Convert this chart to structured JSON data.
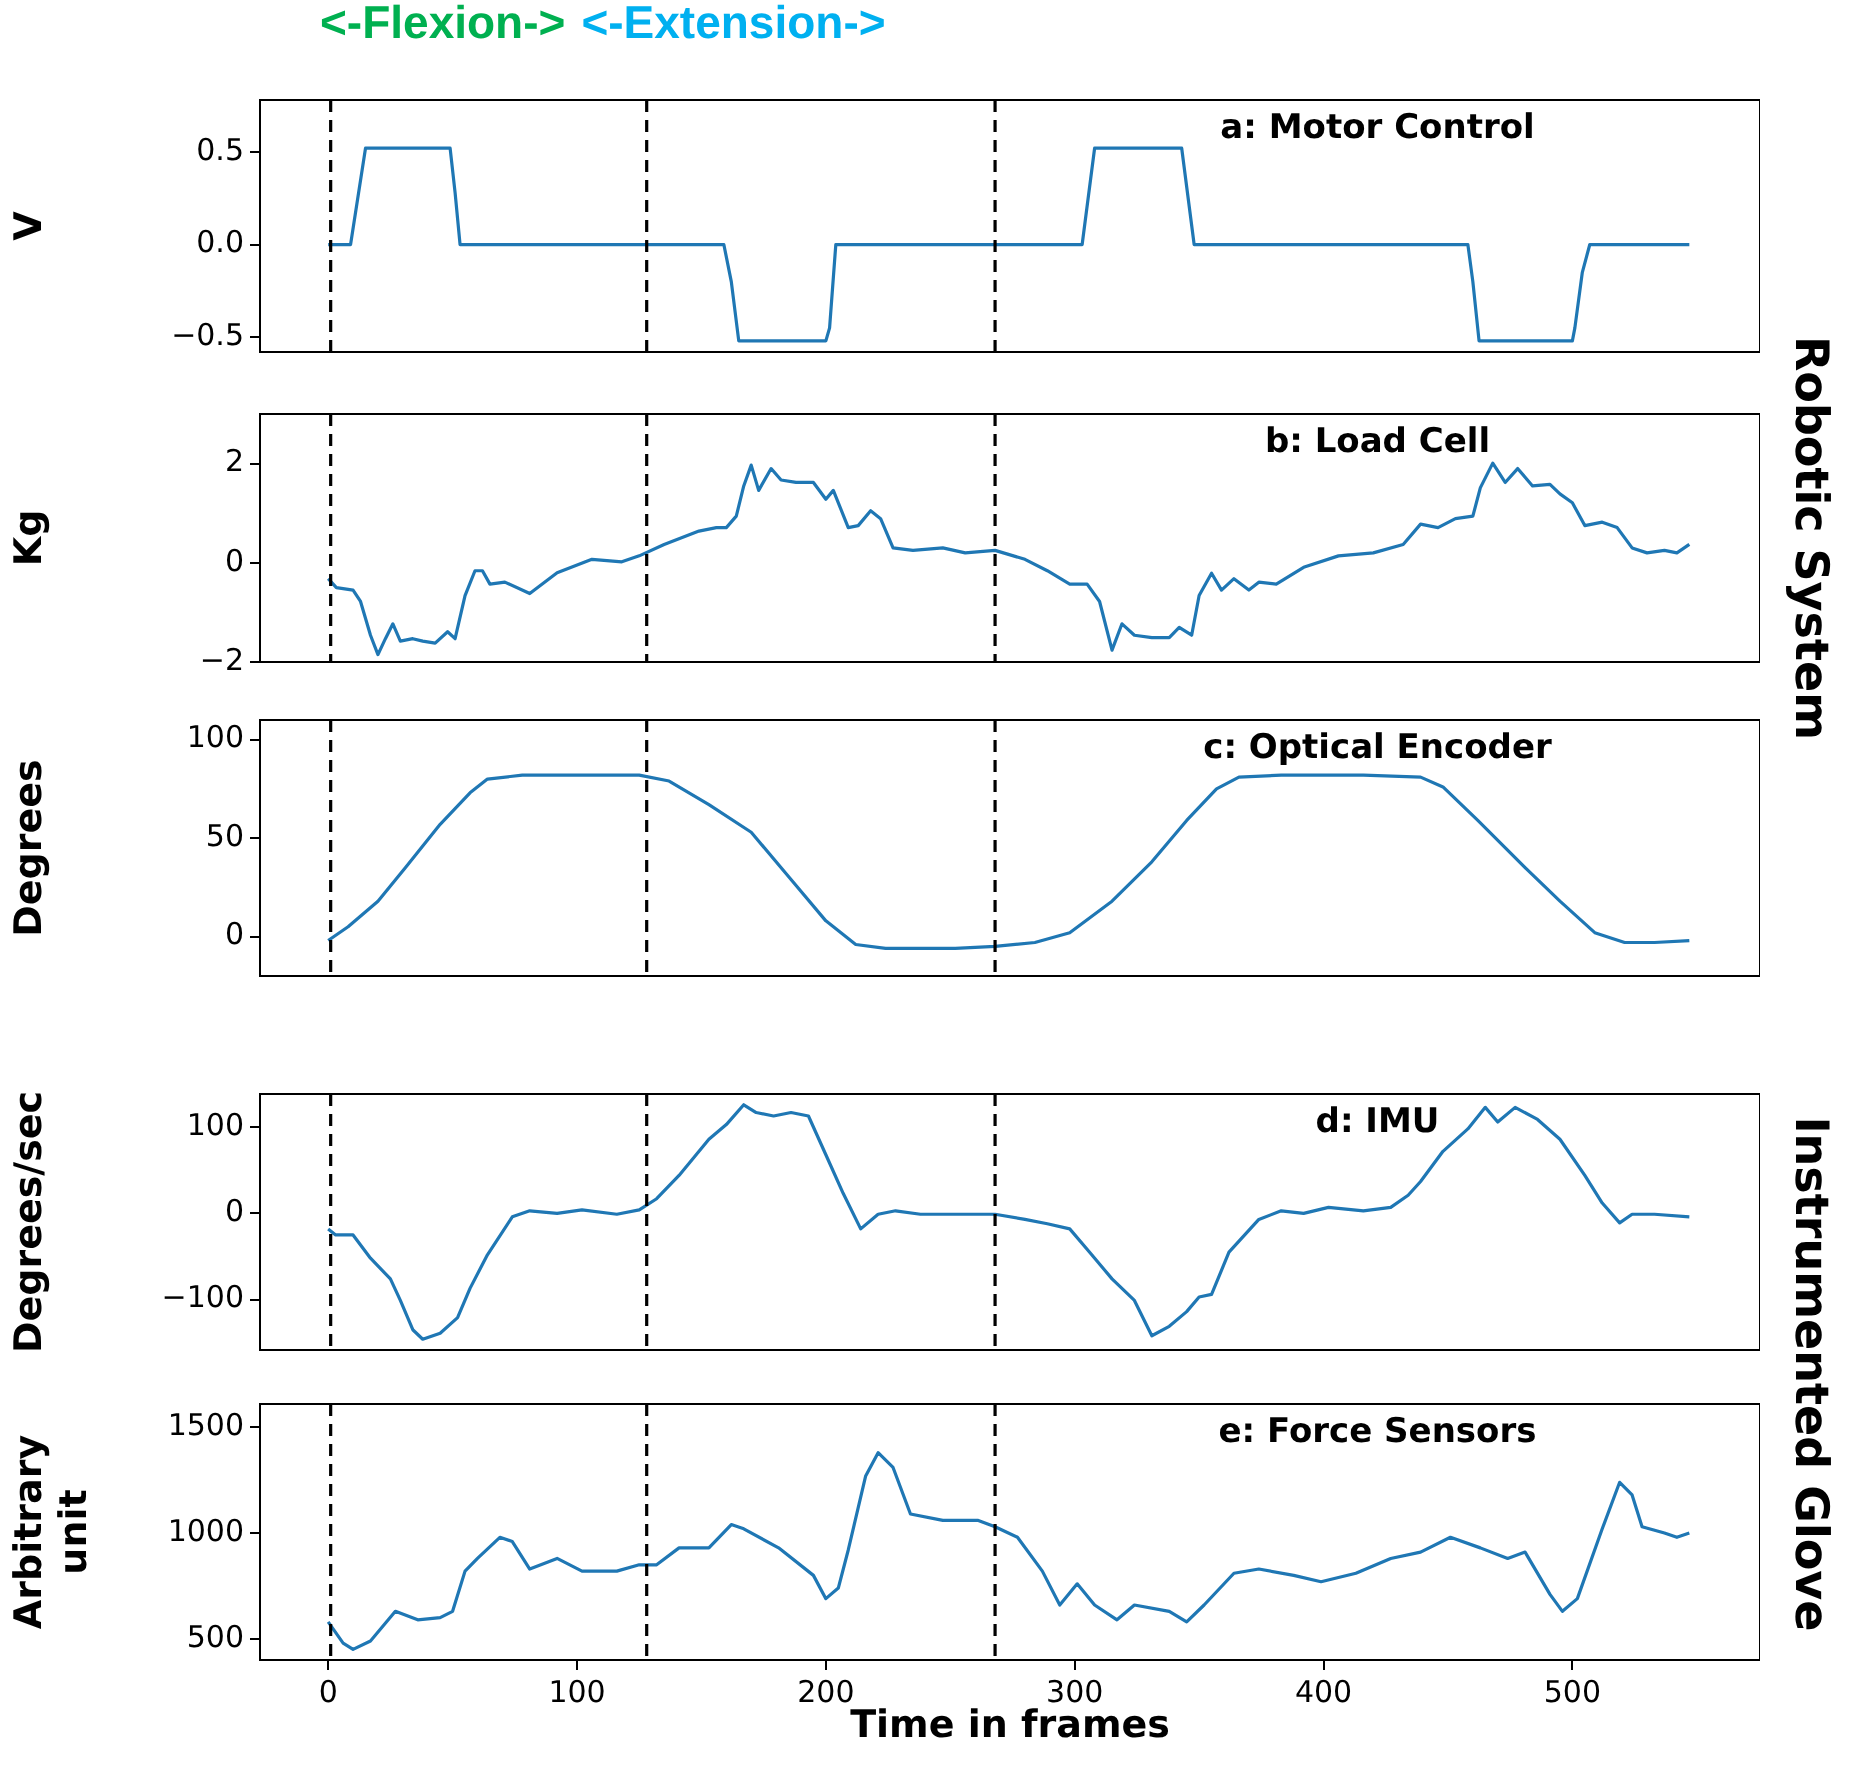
{
  "chart_data": [
    {
      "type": "line",
      "title": "a: Motor Control",
      "ylabel": "V",
      "annotations": [
        "<-Flexion->",
        "<-Extension->"
      ],
      "tick_labels": "y",
      "grid": false,
      "legend": false,
      "xlim": [
        -27.4,
        575.4
      ],
      "ylim": [
        -0.58,
        0.78
      ],
      "yticks": [
        {
          "value": -0.5,
          "label": "−0.5"
        },
        {
          "value": 0,
          "label": "0.0"
        },
        0.5
      ],
      "ref_lines": [
        {
          "axis": "x",
          "value": 1,
          "color": "#000000",
          "line_style": "dashed"
        },
        {
          "axis": "x",
          "value": 128,
          "color": "#000000",
          "line_style": "dashed"
        },
        {
          "axis": "x",
          "value": 268,
          "color": "#000000",
          "line_style": "dashed"
        }
      ],
      "x": [
        0,
        9,
        15,
        49,
        51,
        53,
        159,
        162,
        165,
        200,
        201.5,
        204,
        303,
        308,
        343,
        348,
        458,
        460,
        462.5,
        500,
        501,
        504,
        507,
        547
      ],
      "series": [
        {
          "color": "#1f77b4",
          "values": [
            0,
            0,
            0.52,
            0.52,
            0.28,
            0,
            0,
            -0.2,
            -0.52,
            -0.52,
            -0.45,
            0,
            0,
            0.52,
            0.52,
            0,
            0,
            -0.2,
            -0.52,
            -0.52,
            -0.45,
            -0.15,
            0,
            0
          ]
        }
      ]
    },
    {
      "type": "line",
      "title": "b: Load Cell",
      "ylabel": "Kg",
      "annotations": [
        "Robotic System"
      ],
      "tick_labels": "y",
      "grid": false,
      "legend": false,
      "xlim": [
        -27.4,
        575.4
      ],
      "ylim": [
        -2,
        3
      ],
      "yticks": [
        {
          "value": -2,
          "label": "−2"
        },
        0,
        2
      ],
      "ref_lines": [
        {
          "axis": "x",
          "value": 1,
          "color": "#000000",
          "line_style": "dashed"
        },
        {
          "axis": "x",
          "value": 128,
          "color": "#000000",
          "line_style": "dashed"
        },
        {
          "axis": "x",
          "value": 268,
          "color": "#000000",
          "line_style": "dashed"
        }
      ],
      "x": [
        0,
        3.3,
        10,
        13,
        17,
        20,
        23,
        26,
        29,
        34,
        38,
        43,
        48,
        51,
        55,
        59,
        62,
        65,
        71,
        81,
        92,
        106,
        118,
        125,
        135,
        149,
        156,
        160,
        164,
        167,
        170,
        173,
        178,
        182,
        188,
        195,
        200,
        203,
        209,
        213,
        218,
        222,
        227,
        235,
        247,
        256,
        268,
        280,
        289,
        298,
        305,
        310,
        315,
        319,
        324,
        331,
        338,
        342,
        347,
        350,
        355,
        359,
        364,
        370,
        374,
        381,
        392,
        406,
        420,
        432,
        439,
        446,
        453,
        460,
        463,
        468,
        473,
        478,
        484,
        491,
        495,
        500,
        505,
        512,
        518,
        524,
        530,
        537,
        542,
        547
      ],
      "series": [
        {
          "color": "#1f77b4",
          "values": [
            -0.32,
            -0.5,
            -0.55,
            -0.78,
            -1.46,
            -1.85,
            -1.53,
            -1.23,
            -1.58,
            -1.53,
            -1.58,
            -1.62,
            -1.39,
            -1.53,
            -0.66,
            -0.16,
            -0.16,
            -0.43,
            -0.39,
            -0.62,
            -0.2,
            0.07,
            0.02,
            0.14,
            0.37,
            0.64,
            0.71,
            0.71,
            0.94,
            1.55,
            1.97,
            1.46,
            1.9,
            1.67,
            1.62,
            1.62,
            1.28,
            1.46,
            0.71,
            0.75,
            1.05,
            0.89,
            0.3,
            0.25,
            0.3,
            0.2,
            0.25,
            0.07,
            -0.16,
            -0.43,
            -0.43,
            -0.78,
            -1.76,
            -1.23,
            -1.46,
            -1.51,
            -1.51,
            -1.3,
            -1.46,
            -0.66,
            -0.21,
            -0.55,
            -0.32,
            -0.55,
            -0.39,
            -0.43,
            -0.09,
            0.14,
            0.2,
            0.37,
            0.78,
            0.71,
            0.89,
            0.94,
            1.51,
            2.01,
            1.62,
            1.9,
            1.55,
            1.58,
            1.39,
            1.21,
            0.75,
            0.82,
            0.71,
            0.3,
            0.2,
            0.25,
            0.2,
            0.37
          ]
        }
      ]
    },
    {
      "type": "line",
      "title": "c: Optical Encoder",
      "ylabel": "Degrees",
      "tick_labels": "y",
      "grid": false,
      "legend": false,
      "xlim": [
        -27.4,
        575.4
      ],
      "ylim": [
        -20,
        110
      ],
      "yticks": [
        0,
        50,
        100
      ],
      "ref_lines": [
        {
          "axis": "x",
          "value": 1,
          "color": "#000000",
          "line_style": "dashed"
        },
        {
          "axis": "x",
          "value": 128,
          "color": "#000000",
          "line_style": "dashed"
        },
        {
          "axis": "x",
          "value": 268,
          "color": "#000000",
          "line_style": "dashed"
        }
      ],
      "x": [
        0,
        8,
        20,
        31,
        45,
        57,
        64,
        78,
        102,
        125,
        137,
        153,
        170,
        186,
        200,
        212,
        224,
        252,
        268,
        284,
        298,
        315,
        331,
        345,
        357,
        366,
        383,
        416,
        439,
        448,
        462,
        481,
        495,
        509,
        521,
        533,
        547
      ],
      "series": [
        {
          "color": "#1f77b4",
          "values": [
            -2,
            5,
            18,
            35,
            57,
            73,
            80,
            82,
            82,
            82,
            79,
            67,
            53,
            29,
            8,
            -4,
            -6,
            -6,
            -5,
            -3,
            2,
            18,
            38,
            59,
            75,
            81,
            82,
            82,
            81,
            76,
            59,
            35,
            18,
            2,
            -3,
            -3,
            -2
          ]
        }
      ]
    },
    {
      "type": "line",
      "title": "d: IMU",
      "ylabel": "Degrees/sec",
      "annotations": [
        "Instrumented Glove"
      ],
      "tick_labels": "y",
      "grid": false,
      "legend": false,
      "xlim": [
        -27.4,
        575.4
      ],
      "ylim": [
        -158.5,
        138.5
      ],
      "yticks": [
        {
          "value": -100,
          "label": "−100"
        },
        0,
        100
      ],
      "ref_lines": [
        {
          "axis": "x",
          "value": 1,
          "color": "#000000",
          "line_style": "dashed"
        },
        {
          "axis": "x",
          "value": 128,
          "color": "#000000",
          "line_style": "dashed"
        },
        {
          "axis": "x",
          "value": 268,
          "color": "#000000",
          "line_style": "dashed"
        }
      ],
      "x": [
        0,
        3,
        10,
        17,
        25,
        29,
        34,
        38,
        45,
        52,
        57,
        64,
        74,
        81,
        92,
        102,
        116,
        125,
        132,
        141,
        153,
        160,
        167,
        172,
        179,
        186,
        193,
        200,
        207,
        214,
        221,
        228,
        238,
        252,
        268,
        280,
        289,
        298,
        306,
        315,
        324,
        331,
        338,
        345,
        350,
        355,
        362,
        374,
        383,
        392,
        402,
        416,
        427,
        434,
        439,
        448,
        458,
        465,
        470,
        477,
        486,
        495,
        505,
        512,
        519,
        524,
        533,
        547
      ],
      "series": [
        {
          "color": "#1f77b4",
          "values": [
            -18,
            -25,
            -25,
            -52,
            -76,
            -101,
            -135,
            -146,
            -139,
            -121,
            -87,
            -48,
            -4,
            3,
            0,
            4,
            -1,
            4,
            17,
            44,
            86,
            103,
            126,
            117,
            113,
            117,
            113,
            68,
            23,
            -18,
            -1,
            3,
            -1,
            -1,
            -1,
            -7,
            -12,
            -18,
            -45,
            -76,
            -101,
            -142,
            -131,
            -114,
            -97,
            -94,
            -45,
            -7,
            3,
            0,
            7,
            3,
            7,
            21,
            37,
            72,
            98,
            123,
            106,
            123,
            109,
            86,
            44,
            12,
            -11,
            -1,
            -1,
            -4
          ]
        }
      ]
    },
    {
      "type": "line",
      "title": "e: Force Sensors",
      "xlabel": "Time in frames",
      "ylabel": "Arbitrary unit",
      "grid": false,
      "legend": false,
      "xlim": [
        -27.4,
        575.4
      ],
      "xticks": [
        0,
        100,
        200,
        300,
        400,
        500
      ],
      "ylim": [
        400,
        1610
      ],
      "yticks": [
        500,
        1000,
        1500
      ],
      "ref_lines": [
        {
          "axis": "x",
          "value": 1,
          "color": "#000000",
          "line_style": "dashed"
        },
        {
          "axis": "x",
          "value": 128,
          "color": "#000000",
          "line_style": "dashed"
        },
        {
          "axis": "x",
          "value": 268,
          "color": "#000000",
          "line_style": "dashed"
        }
      ],
      "x": [
        0,
        6,
        10,
        17,
        27,
        36,
        45,
        50,
        55,
        60,
        69,
        74,
        81,
        92,
        102,
        116,
        125,
        132,
        141,
        153,
        162,
        167,
        181,
        195,
        200,
        205,
        209,
        216,
        221,
        227,
        234,
        247,
        261,
        268,
        277,
        287,
        294,
        301,
        308,
        317,
        324,
        338,
        345,
        352,
        364,
        374,
        388,
        399,
        413,
        427,
        439,
        451,
        463,
        474,
        481,
        491,
        496,
        502,
        512,
        519,
        524,
        528,
        537,
        542,
        547
      ],
      "series": [
        {
          "color": "#1f77b4",
          "values": [
            580,
            480,
            450,
            490,
            630,
            590,
            600,
            630,
            820,
            880,
            980,
            960,
            830,
            880,
            820,
            820,
            850,
            850,
            930,
            930,
            1040,
            1020,
            930,
            800,
            690,
            740,
            920,
            1270,
            1380,
            1310,
            1090,
            1060,
            1060,
            1030,
            980,
            820,
            660,
            760,
            660,
            590,
            660,
            630,
            580,
            660,
            810,
            830,
            800,
            770,
            810,
            880,
            910,
            980,
            930,
            880,
            910,
            710,
            630,
            690,
            1020,
            1240,
            1180,
            1030,
            1000,
            980,
            1000
          ]
        }
      ]
    }
  ]
}
